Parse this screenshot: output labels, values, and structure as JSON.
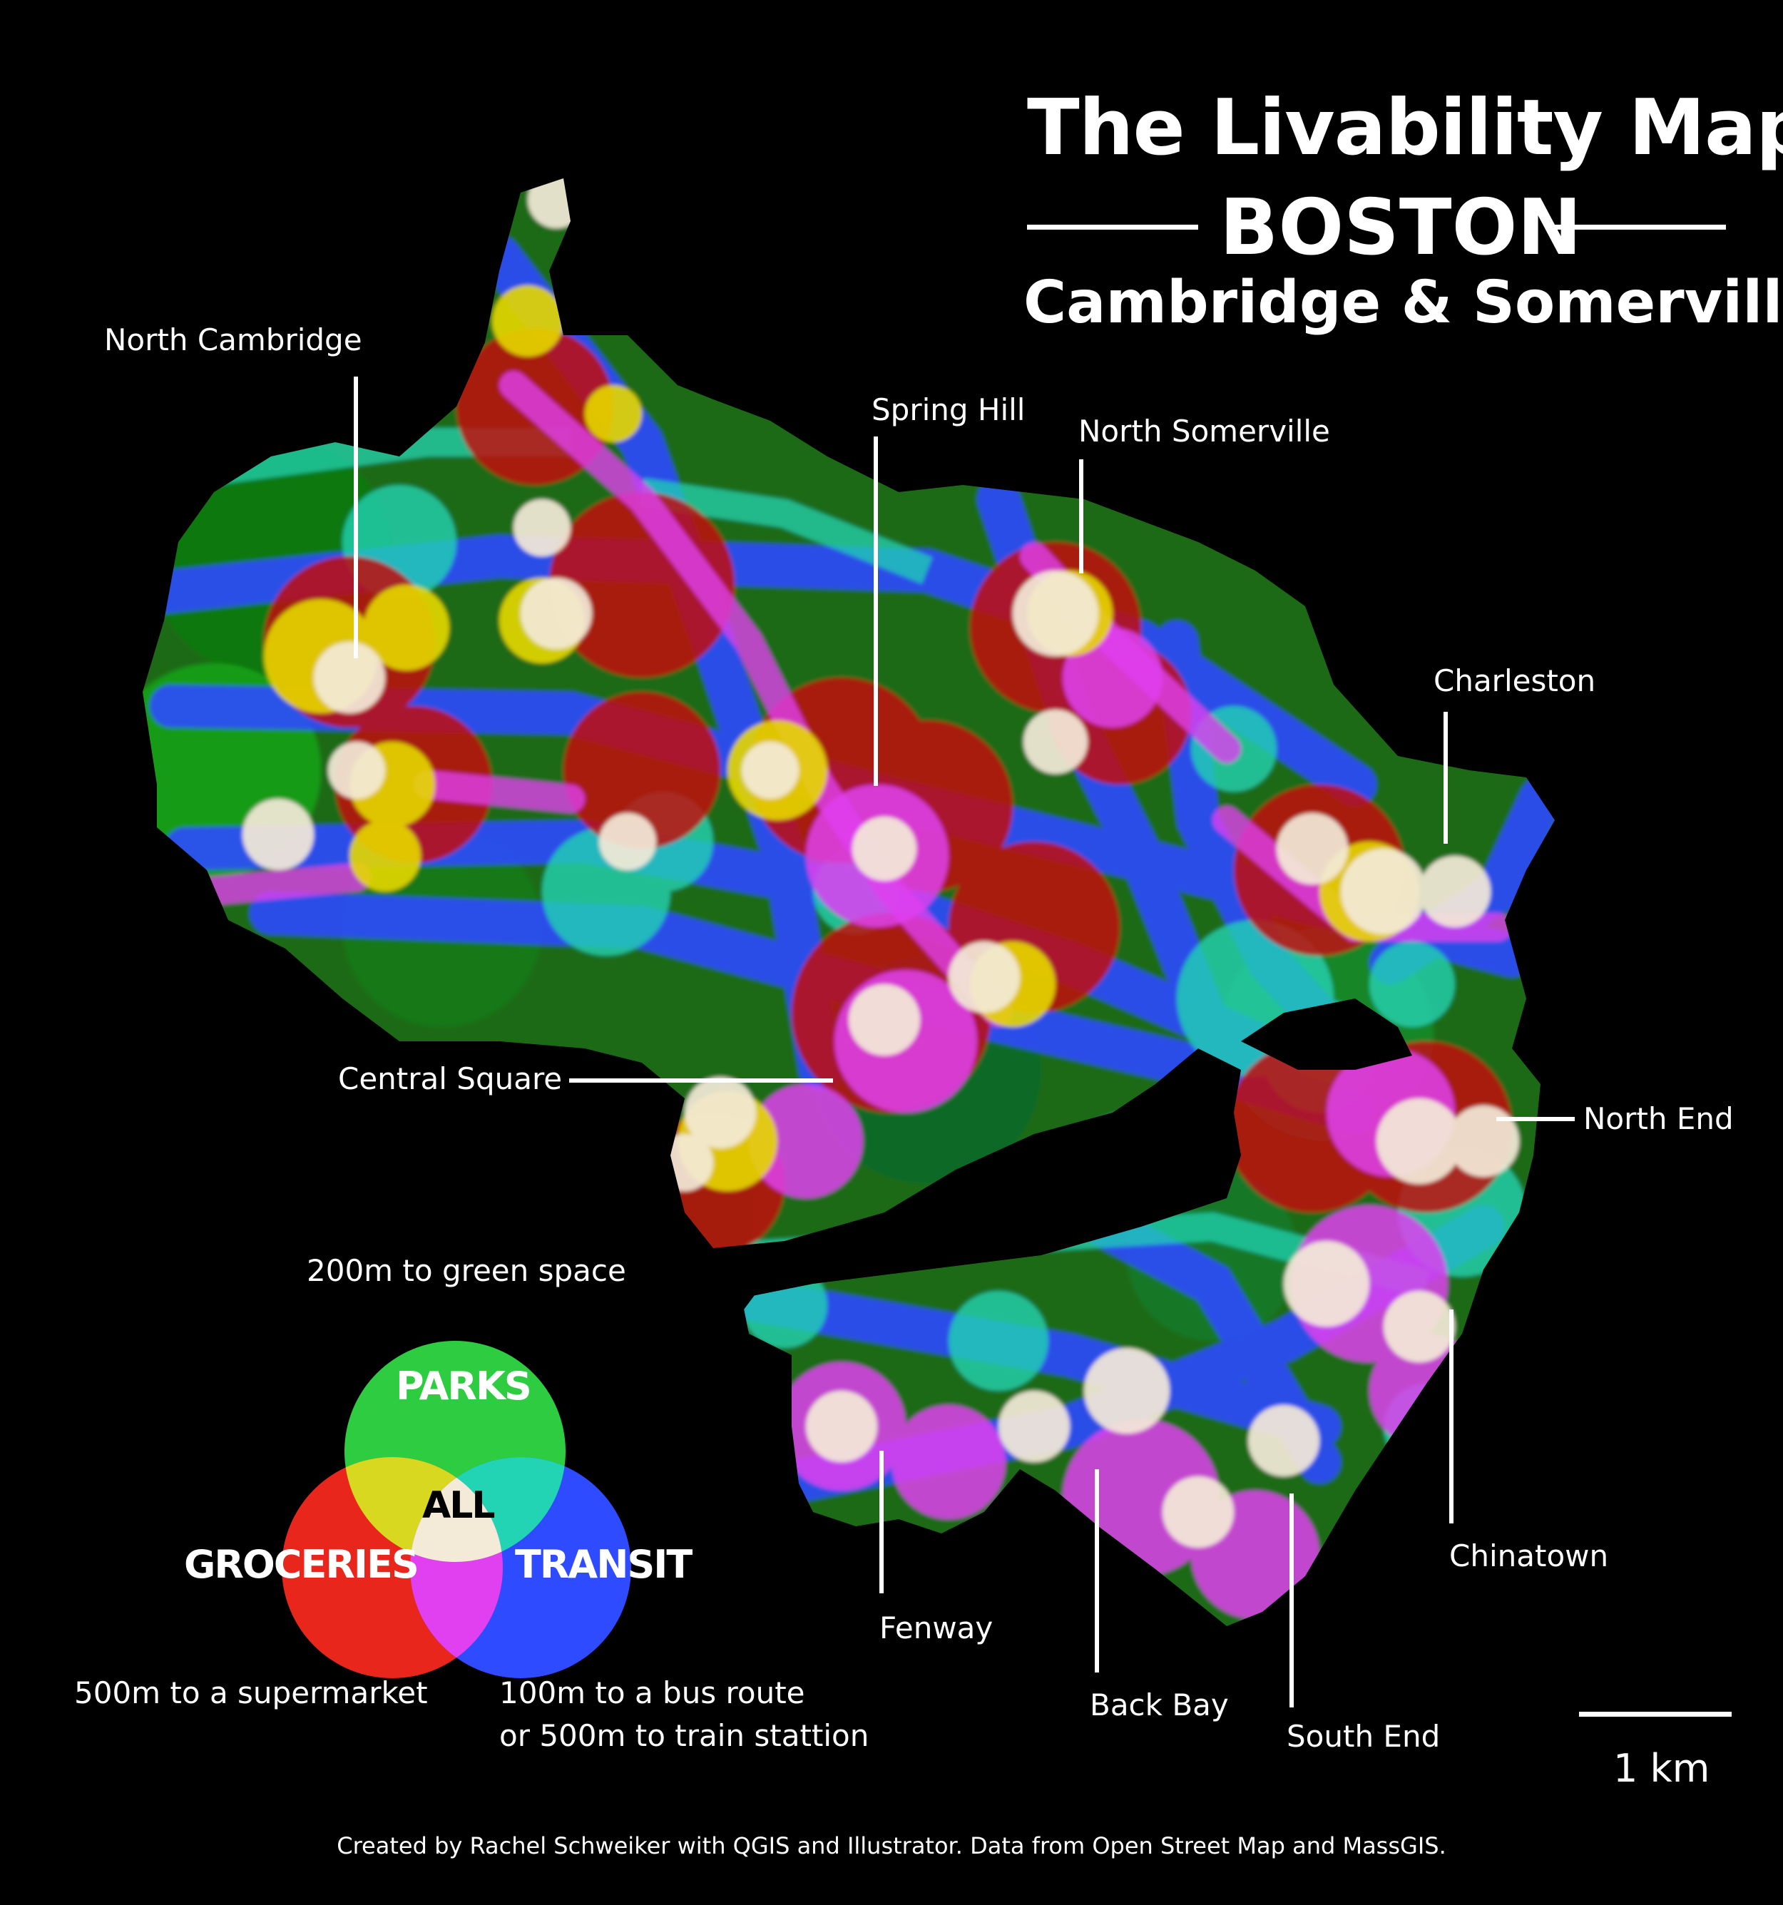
{
  "title": {
    "main": "The Livability Map",
    "city": "BOSTON",
    "sub": "Cambridge & Somerville"
  },
  "neighborhoods": {
    "north_cambridge": "North Cambridge",
    "spring_hill": "Spring Hill",
    "north_somerville": "North Somerville",
    "charleston": "Charleston",
    "central_square": "Central Square",
    "north_end": "North End",
    "fenway": "Fenway",
    "back_bay": "Back Bay",
    "south_end": "South End",
    "chinatown": "Chinatown"
  },
  "legend": {
    "parks_caption": "200m to green space",
    "groceries_caption": "500m to a supermarket",
    "transit_caption_line1": "100m to a bus route",
    "transit_caption_line2": "or 500m to train stattion",
    "parks": "PARKS",
    "groceries": "GROCERIES",
    "transit": "TRANSIT",
    "all": "ALL",
    "colors": {
      "parks": "#2ecc40",
      "groceries": "#e8261b",
      "transit": "#2f4bff",
      "parks_groceries": "#d8d820",
      "parks_transit": "#22d3b4",
      "groceries_transit": "#e040f0",
      "all": "#f4ead8"
    }
  },
  "scale": {
    "label": "1 km"
  },
  "credit": "Created by Rachel Schweiker with QGIS and  Illustrator. Data from Open Street Map and MassGIS."
}
